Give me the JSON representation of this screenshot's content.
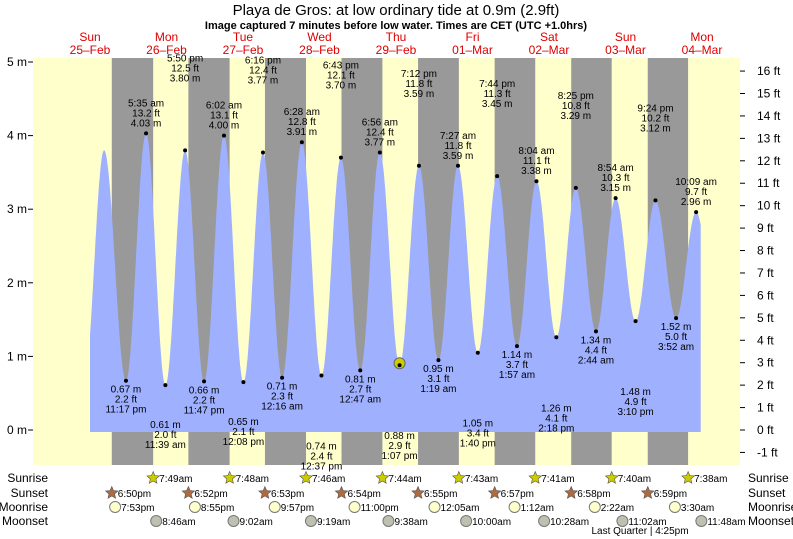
{
  "title": "Playa de Gros: at low  ordinary tide at 0.9m (2.9ft)",
  "subtitle": "Image captured 7 minutes before low water. Times are CET (UTC +1.0hrs)",
  "colors": {
    "day": "#ffffcc",
    "night": "#999999",
    "water": "#9fb0ff",
    "day_label": "#dd0000",
    "current_marker": "#cccc00",
    "sunrise": "#cccc00",
    "sunset": "#b06a40",
    "moonrise": "#ffffcc",
    "moonset": "#c0c0b0"
  },
  "chart_data": {
    "type": "area",
    "title": "Playa de Gros: at low  ordinary tide at 0.9m (2.9ft)",
    "ylim_m": [
      -0.2,
      5.1
    ],
    "left_ticks": [
      "0 m",
      "1 m",
      "2 m",
      "3 m",
      "4 m",
      "5 m"
    ],
    "right_ticks": [
      "-1 ft",
      "0 ft",
      "1 ft",
      "2 ft",
      "3 ft",
      "4 ft",
      "5 ft",
      "6 ft",
      "7 ft",
      "8 ft",
      "9 ft",
      "10 ft",
      "11 ft",
      "12 ft",
      "13 ft",
      "14 ft",
      "15 ft",
      "16 ft"
    ],
    "days": [
      {
        "dow": "Sun",
        "date": "25–Feb"
      },
      {
        "dow": "Mon",
        "date": "26–Feb"
      },
      {
        "dow": "Tue",
        "date": "27–Feb"
      },
      {
        "dow": "Wed",
        "date": "28–Feb"
      },
      {
        "dow": "Thu",
        "date": "29–Feb"
      },
      {
        "dow": "Fri",
        "date": "01–Mar"
      },
      {
        "dow": "Sat",
        "date": "02–Mar"
      },
      {
        "dow": "Sun",
        "date": "03–Mar"
      },
      {
        "dow": "Mon",
        "date": "04–Mar"
      }
    ],
    "extremes": [
      {
        "day": 0,
        "time": "4:25 pm",
        "m": 3.8,
        "labeled": false,
        "type": "high"
      },
      {
        "day": 0,
        "time": "11:17 pm",
        "m": 0.67,
        "m_label": "0.67 m",
        "ft": "2.2 ft",
        "type": "low"
      },
      {
        "day": 1,
        "time": "5:35 am",
        "m": 4.03,
        "m_label": "4.03 m",
        "ft": "13.2 ft",
        "type": "high"
      },
      {
        "day": 1,
        "time": "11:39 am",
        "m": 0.61,
        "m_label": "0.61 m",
        "ft": "2.0 ft",
        "type": "low"
      },
      {
        "day": 1,
        "time": "5:50 pm",
        "m": 3.8,
        "m_label": "3.80 m",
        "ft": "12.5 ft",
        "type": "high"
      },
      {
        "day": 1,
        "time": "11:47 pm",
        "m": 0.66,
        "m_label": "0.66 m",
        "ft": "2.2 ft",
        "type": "low"
      },
      {
        "day": 2,
        "time": "6:02 am",
        "m": 4.0,
        "m_label": "4.00 m",
        "ft": "13.1 ft",
        "type": "high"
      },
      {
        "day": 2,
        "time": "12:08 pm",
        "m": 0.65,
        "m_label": "0.65 m",
        "ft": "2.1 ft",
        "type": "low"
      },
      {
        "day": 2,
        "time": "6:16 pm",
        "m": 3.77,
        "m_label": "3.77 m",
        "ft": "12.4 ft",
        "type": "high"
      },
      {
        "day": 3,
        "time": "12:16 am",
        "m": 0.71,
        "m_label": "0.71 m",
        "ft": "2.3 ft",
        "type": "low"
      },
      {
        "day": 3,
        "time": "6:28 am",
        "m": 3.91,
        "m_label": "3.91 m",
        "ft": "12.8 ft",
        "type": "high"
      },
      {
        "day": 3,
        "time": "12:37 pm",
        "m": 0.74,
        "m_label": "0.74 m",
        "ft": "2.4 ft",
        "type": "low"
      },
      {
        "day": 3,
        "time": "6:43 pm",
        "m": 3.7,
        "m_label": "3.70 m",
        "ft": "12.1 ft",
        "type": "high"
      },
      {
        "day": 4,
        "time": "12:47 am",
        "m": 0.81,
        "m_label": "0.81 m",
        "ft": "2.7 ft",
        "type": "low"
      },
      {
        "day": 4,
        "time": "6:56 am",
        "m": 3.77,
        "m_label": "3.77 m",
        "ft": "12.4 ft",
        "type": "high"
      },
      {
        "day": 4,
        "time": "1:07 pm",
        "m": 0.88,
        "m_label": "0.88 m",
        "ft": "2.9 ft",
        "type": "low",
        "current": true
      },
      {
        "day": 4,
        "time": "7:12 pm",
        "m": 3.59,
        "m_label": "3.59 m",
        "ft": "11.8 ft",
        "type": "high"
      },
      {
        "day": 5,
        "time": "1:19 am",
        "m": 0.95,
        "m_label": "0.95 m",
        "ft": "3.1 ft",
        "type": "low"
      },
      {
        "day": 5,
        "time": "7:27 am",
        "m": 3.59,
        "m_label": "3.59 m",
        "ft": "11.8 ft",
        "type": "high"
      },
      {
        "day": 5,
        "time": "1:40 pm",
        "m": 1.05,
        "m_label": "1.05 m",
        "ft": "3.4 ft",
        "type": "low"
      },
      {
        "day": 5,
        "time": "7:44 pm",
        "m": 3.45,
        "m_label": "3.45 m",
        "ft": "11.3 ft",
        "type": "high"
      },
      {
        "day": 6,
        "time": "1:57 am",
        "m": 1.14,
        "m_label": "1.14 m",
        "ft": "3.7 ft",
        "type": "low"
      },
      {
        "day": 6,
        "time": "8:04 am",
        "m": 3.38,
        "m_label": "3.38 m",
        "ft": "11.1 ft",
        "type": "high"
      },
      {
        "day": 6,
        "time": "2:18 pm",
        "m": 1.26,
        "m_label": "1.26 m",
        "ft": "4.1 ft",
        "type": "low"
      },
      {
        "day": 6,
        "time": "8:25 pm",
        "m": 3.29,
        "m_label": "3.29 m",
        "ft": "10.8 ft",
        "type": "high"
      },
      {
        "day": 7,
        "time": "2:44 am",
        "m": 1.34,
        "m_label": "1.34 m",
        "ft": "4.4 ft",
        "type": "low"
      },
      {
        "day": 7,
        "time": "8:54 am",
        "m": 3.15,
        "m_label": "3.15 m",
        "ft": "10.3 ft",
        "type": "high"
      },
      {
        "day": 7,
        "time": "3:10 pm",
        "m": 1.48,
        "m_label": "1.48 m",
        "ft": "4.9 ft",
        "type": "low"
      },
      {
        "day": 7,
        "time": "9:24 pm",
        "m": 3.12,
        "m_label": "3.12 m",
        "ft": "10.2 ft",
        "type": "high"
      },
      {
        "day": 8,
        "time": "3:52 am",
        "m": 1.52,
        "m_label": "1.52 m",
        "ft": "5.0 ft",
        "type": "low"
      },
      {
        "day": 8,
        "time": "10:09 am",
        "m": 2.96,
        "m_label": "2.96 m",
        "ft": "9.7 ft",
        "type": "high"
      }
    ]
  },
  "astro": {
    "labels": {
      "sunrise": "Sunrise",
      "sunset": "Sunset",
      "moonrise": "Moonrise",
      "moonset": "Moonset"
    },
    "sunrise": [
      {
        "day": 1,
        "time": "7:49am"
      },
      {
        "day": 2,
        "time": "7:48am"
      },
      {
        "day": 3,
        "time": "7:46am"
      },
      {
        "day": 4,
        "time": "7:44am"
      },
      {
        "day": 5,
        "time": "7:43am"
      },
      {
        "day": 6,
        "time": "7:41am"
      },
      {
        "day": 7,
        "time": "7:40am"
      },
      {
        "day": 8,
        "time": "7:38am"
      }
    ],
    "sunset": [
      {
        "day": 0,
        "time": "6:50pm"
      },
      {
        "day": 1,
        "time": "6:52pm"
      },
      {
        "day": 2,
        "time": "6:53pm"
      },
      {
        "day": 3,
        "time": "6:54pm"
      },
      {
        "day": 4,
        "time": "6:55pm"
      },
      {
        "day": 5,
        "time": "6:57pm"
      },
      {
        "day": 6,
        "time": "6:58pm"
      },
      {
        "day": 7,
        "time": "6:59pm"
      }
    ],
    "moonrise": [
      {
        "day": 0,
        "time": "7:53pm"
      },
      {
        "day": 1,
        "time": "8:55pm"
      },
      {
        "day": 2,
        "time": "9:57pm"
      },
      {
        "day": 3,
        "time": "11:00pm"
      },
      {
        "day": 5,
        "time": "12:05am"
      },
      {
        "day": 6,
        "time": "1:12am"
      },
      {
        "day": 7,
        "time": "2:22am"
      },
      {
        "day": 8,
        "time": "3:30am"
      }
    ],
    "moonset": [
      {
        "day": 1,
        "time": "8:46am"
      },
      {
        "day": 2,
        "time": "9:02am"
      },
      {
        "day": 3,
        "time": "9:19am"
      },
      {
        "day": 4,
        "time": "9:38am"
      },
      {
        "day": 5,
        "time": "10:00am"
      },
      {
        "day": 6,
        "time": "10:28am"
      },
      {
        "day": 7,
        "time": "11:02am"
      },
      {
        "day": 8,
        "time": "11:48am"
      }
    ],
    "moon_phase": {
      "day": 7,
      "time": "4:25pm",
      "label": "Last Quarter | 4:25pm"
    }
  }
}
